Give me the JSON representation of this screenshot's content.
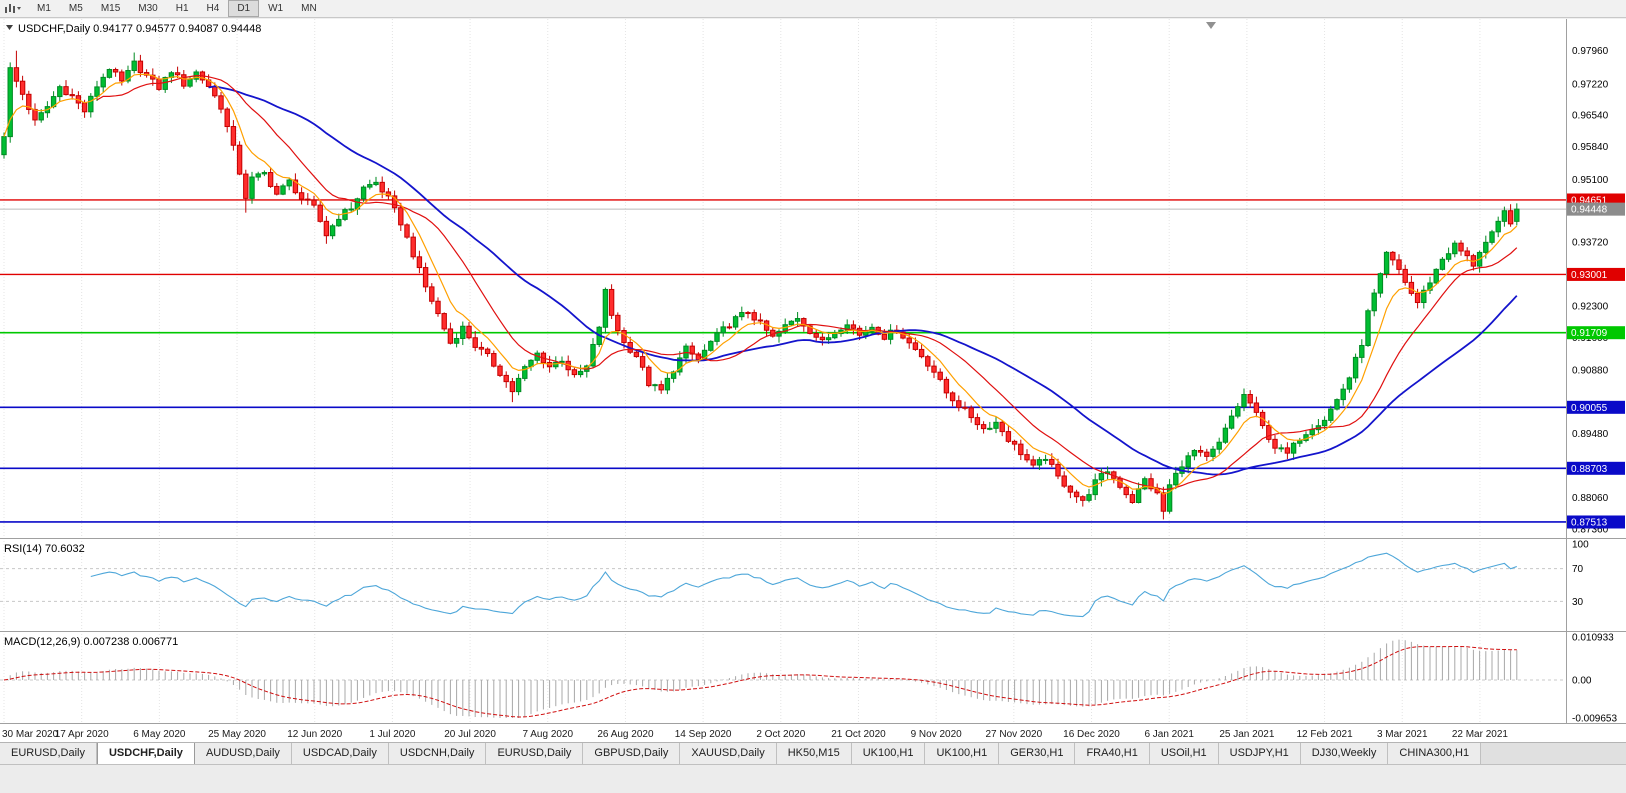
{
  "toolbar": {
    "timeframes": [
      "M1",
      "M5",
      "M15",
      "M30",
      "H1",
      "H4",
      "D1",
      "W1",
      "MN"
    ],
    "active_timeframe": "D1"
  },
  "chart": {
    "symbol_label": "USDCHF,Daily",
    "info_line": "USDCHF,Daily 0.94177 0.94577 0.94087 0.94448",
    "ohlc": {
      "open": "0.94177",
      "high": "0.94577",
      "low": "0.94087",
      "close": "0.94448"
    }
  },
  "price_axis": {
    "current_price_label": "0.94448",
    "ticks": [
      {
        "label": "0.97960",
        "price": 0.9796
      },
      {
        "label": "0.97220",
        "price": 0.9722
      },
      {
        "label": "0.96540",
        "price": 0.9654
      },
      {
        "label": "0.95840",
        "price": 0.9584
      },
      {
        "label": "0.95100",
        "price": 0.951
      },
      {
        "label": "0.93720",
        "price": 0.9372
      },
      {
        "label": "0.92300",
        "price": 0.923
      },
      {
        "label": "0.91600",
        "price": 0.916
      },
      {
        "label": "0.90880",
        "price": 0.9088
      },
      {
        "label": "0.89480",
        "price": 0.8948
      },
      {
        "label": "0.88060",
        "price": 0.8806
      },
      {
        "label": "0.87360",
        "price": 0.8736
      }
    ]
  },
  "date_axis": {
    "labels": [
      "30 Mar 2020",
      "17 Apr 2020",
      "6 May 2020",
      "25 May 2020",
      "12 Jun 2020",
      "1 Jul 2020",
      "20 Jul 2020",
      "7 Aug 2020",
      "26 Aug 2020",
      "14 Sep 2020",
      "2 Oct 2020",
      "21 Oct 2020",
      "9 Nov 2020",
      "27 Nov 2020",
      "16 Dec 2020",
      "6 Jan 2021",
      "25 Jan 2021",
      "12 Feb 2021",
      "3 Mar 2021",
      "22 Mar 2021"
    ]
  },
  "rsi": {
    "label": "RSI(14) 70.6032",
    "period": 14,
    "current": "70.6032",
    "levels": [
      {
        "label": "100",
        "value": 100
      },
      {
        "label": "70",
        "value": 70
      },
      {
        "label": "30",
        "value": 30
      }
    ]
  },
  "macd": {
    "label": "MACD(12,26,9) 0.007238 0.006771",
    "main_value": "0.007238",
    "signal_value": "0.006771",
    "scale": [
      {
        "label": "0.010933",
        "value": 0.010933
      },
      {
        "label": "0.00",
        "value": 0
      },
      {
        "label": "-0.009653",
        "value": -0.009653
      }
    ]
  },
  "tabs": {
    "active_index": 1,
    "items": [
      "EURUSD,Daily",
      "USDCHF,Daily",
      "AUDUSD,Daily",
      "USDCAD,Daily",
      "USDCNH,Daily",
      "EURUSD,Daily",
      "GBPUSD,Daily",
      "XAUUSD,Daily",
      "HK50,M15",
      "UK100,H1",
      "UK100,H1",
      "GER30,H1",
      "FRA40,H1",
      "USOil,H1",
      "USDJPY,H1",
      "DJ30,Weekly",
      "CHINA300,H1"
    ]
  },
  "colors": {
    "up_fill": "#00BE32",
    "up_stroke": "#008A22",
    "down_fill": "#FF2D2D",
    "down_stroke": "#C40000",
    "ma_slow": "#1414CC",
    "ma_mid": "#E01010",
    "ma_fast": "#FFA000",
    "current_price_box": "#8C8C8C",
    "current_price_line": "#BBBBBB",
    "rsi_line": "#4DA6D9",
    "macd_hist": "#A8A8A8",
    "macd_signal": "#D01010",
    "grid": "#E4E4E4",
    "panel_border": "#A0A0A0",
    "level_dash": "#C8C8C8",
    "axis_text": "#000000",
    "marker": "#909090"
  },
  "chart_data": {
    "type": "candlestick",
    "symbol": "USDCHF",
    "timeframe": "Daily",
    "visible_range": {
      "start": "30 Mar 2020",
      "end": "26 Mar 2021"
    },
    "num_candles": 245,
    "noise": 0.0014,
    "price_range": [
      0.87158,
      0.98663
    ],
    "current": {
      "open": 0.94177,
      "high": 0.94577,
      "low": 0.94087,
      "close": 0.94448
    },
    "horizontal_levels": [
      {
        "label": "0.94651",
        "price": 0.94651,
        "color": "#E00000",
        "width": 1.4
      },
      {
        "label": "0.93001",
        "price": 0.93001,
        "color": "#E00000",
        "width": 1.4
      },
      {
        "label": "0.91709",
        "price": 0.91709,
        "color": "#00C800",
        "width": 1.6
      },
      {
        "label": "0.90055",
        "price": 0.90055,
        "color": "#0A0AC8",
        "width": 1.6
      },
      {
        "label": "0.88703",
        "price": 0.88703,
        "color": "#0A0AC8",
        "width": 1.6
      },
      {
        "label": "0.87513",
        "price": 0.87513,
        "color": "#0A0AC8",
        "width": 1.6
      }
    ],
    "close_anchors": [
      [
        0,
        0.961
      ],
      [
        1,
        0.9755
      ],
      [
        3,
        0.97
      ],
      [
        5,
        0.9638
      ],
      [
        7,
        0.9672
      ],
      [
        9,
        0.9716
      ],
      [
        11,
        0.9695
      ],
      [
        13,
        0.9662
      ],
      [
        15,
        0.9718
      ],
      [
        17,
        0.9758
      ],
      [
        19,
        0.9726
      ],
      [
        21,
        0.9768
      ],
      [
        23,
        0.974
      ],
      [
        25,
        0.9714
      ],
      [
        27,
        0.9752
      ],
      [
        29,
        0.9722
      ],
      [
        31,
        0.9748
      ],
      [
        33,
        0.9718
      ],
      [
        35,
        0.9672
      ],
      [
        37,
        0.958
      ],
      [
        39,
        0.9472
      ],
      [
        40,
        0.9512
      ],
      [
        42,
        0.9524
      ],
      [
        44,
        0.9478
      ],
      [
        46,
        0.9506
      ],
      [
        48,
        0.9468
      ],
      [
        50,
        0.9448
      ],
      [
        52,
        0.9388
      ],
      [
        54,
        0.9428
      ],
      [
        56,
        0.9448
      ],
      [
        58,
        0.9492
      ],
      [
        60,
        0.9504
      ],
      [
        62,
        0.9468
      ],
      [
        64,
        0.9415
      ],
      [
        66,
        0.9345
      ],
      [
        68,
        0.9272
      ],
      [
        70,
        0.9212
      ],
      [
        72,
        0.9148
      ],
      [
        74,
        0.9182
      ],
      [
        76,
        0.9142
      ],
      [
        78,
        0.9118
      ],
      [
        80,
        0.9082
      ],
      [
        82,
        0.9042
      ],
      [
        84,
        0.9092
      ],
      [
        86,
        0.9124
      ],
      [
        88,
        0.9096
      ],
      [
        90,
        0.9112
      ],
      [
        92,
        0.9072
      ],
      [
        94,
        0.9095
      ],
      [
        96,
        0.9185
      ],
      [
        97,
        0.9262
      ],
      [
        98,
        0.921
      ],
      [
        100,
        0.9148
      ],
      [
        102,
        0.912
      ],
      [
        104,
        0.9058
      ],
      [
        106,
        0.9042
      ],
      [
        108,
        0.909
      ],
      [
        110,
        0.9135
      ],
      [
        112,
        0.911
      ],
      [
        114,
        0.915
      ],
      [
        116,
        0.9178
      ],
      [
        118,
        0.9202
      ],
      [
        120,
        0.9218
      ],
      [
        122,
        0.919
      ],
      [
        124,
        0.916
      ],
      [
        126,
        0.9185
      ],
      [
        128,
        0.9205
      ],
      [
        130,
        0.9175
      ],
      [
        132,
        0.915
      ],
      [
        134,
        0.9172
      ],
      [
        136,
        0.9195
      ],
      [
        138,
        0.9165
      ],
      [
        140,
        0.9185
      ],
      [
        142,
        0.9162
      ],
      [
        144,
        0.9178
      ],
      [
        146,
        0.9148
      ],
      [
        148,
        0.912
      ],
      [
        150,
        0.9085
      ],
      [
        152,
        0.9038
      ],
      [
        154,
        0.901
      ],
      [
        156,
        0.8985
      ],
      [
        158,
        0.8958
      ],
      [
        160,
        0.8972
      ],
      [
        162,
        0.8935
      ],
      [
        164,
        0.8905
      ],
      [
        166,
        0.8872
      ],
      [
        168,
        0.8895
      ],
      [
        170,
        0.885
      ],
      [
        172,
        0.8822
      ],
      [
        174,
        0.8795
      ],
      [
        176,
        0.884
      ],
      [
        178,
        0.8865
      ],
      [
        180,
        0.8832
      ],
      [
        182,
        0.8798
      ],
      [
        184,
        0.8845
      ],
      [
        186,
        0.8812
      ],
      [
        187,
        0.8775
      ],
      [
        188,
        0.8832
      ],
      [
        190,
        0.888
      ],
      [
        192,
        0.8908
      ],
      [
        194,
        0.8892
      ],
      [
        196,
        0.8925
      ],
      [
        198,
        0.8985
      ],
      [
        200,
        0.9032
      ],
      [
        201,
        0.9015
      ],
      [
        203,
        0.8962
      ],
      [
        205,
        0.8918
      ],
      [
        207,
        0.8902
      ],
      [
        209,
        0.8938
      ],
      [
        211,
        0.8962
      ],
      [
        213,
        0.898
      ],
      [
        215,
        0.9022
      ],
      [
        217,
        0.9072
      ],
      [
        219,
        0.9148
      ],
      [
        220,
        0.9215
      ],
      [
        222,
        0.9295
      ],
      [
        223,
        0.9345
      ],
      [
        225,
        0.931
      ],
      [
        227,
        0.9258
      ],
      [
        228,
        0.9238
      ],
      [
        230,
        0.9285
      ],
      [
        232,
        0.9335
      ],
      [
        234,
        0.9365
      ],
      [
        236,
        0.9338
      ],
      [
        237,
        0.9322
      ],
      [
        238,
        0.9352
      ],
      [
        240,
        0.9388
      ],
      [
        241,
        0.9412
      ],
      [
        242,
        0.9438
      ],
      [
        243,
        0.9418
      ],
      [
        244,
        0.94448
      ]
    ],
    "wick_overrides": [
      [
        2,
        "high",
        0.9796
      ],
      [
        21,
        "high",
        0.9792
      ],
      [
        39,
        "low",
        0.9437
      ],
      [
        52,
        "low",
        0.9368
      ],
      [
        82,
        "low",
        0.9017
      ],
      [
        97,
        "high",
        0.9271
      ],
      [
        187,
        "low",
        0.8757
      ],
      [
        223,
        "high",
        0.9352
      ]
    ],
    "moving_averages": [
      {
        "name": "slow",
        "type": "sma",
        "period": 34,
        "color_key": "ma_slow",
        "width": 1.8
      },
      {
        "name": "mid",
        "type": "sma",
        "period": 16,
        "color_key": "ma_mid",
        "width": 1.2
      },
      {
        "name": "fast",
        "type": "ema",
        "period": 7,
        "color_key": "ma_fast",
        "width": 1.2
      }
    ],
    "indicators": [
      {
        "name": "RSI",
        "params": "14",
        "value": 70.6032
      },
      {
        "name": "MACD",
        "params": "12,26,9",
        "values": [
          0.007238,
          0.006771
        ]
      }
    ]
  }
}
